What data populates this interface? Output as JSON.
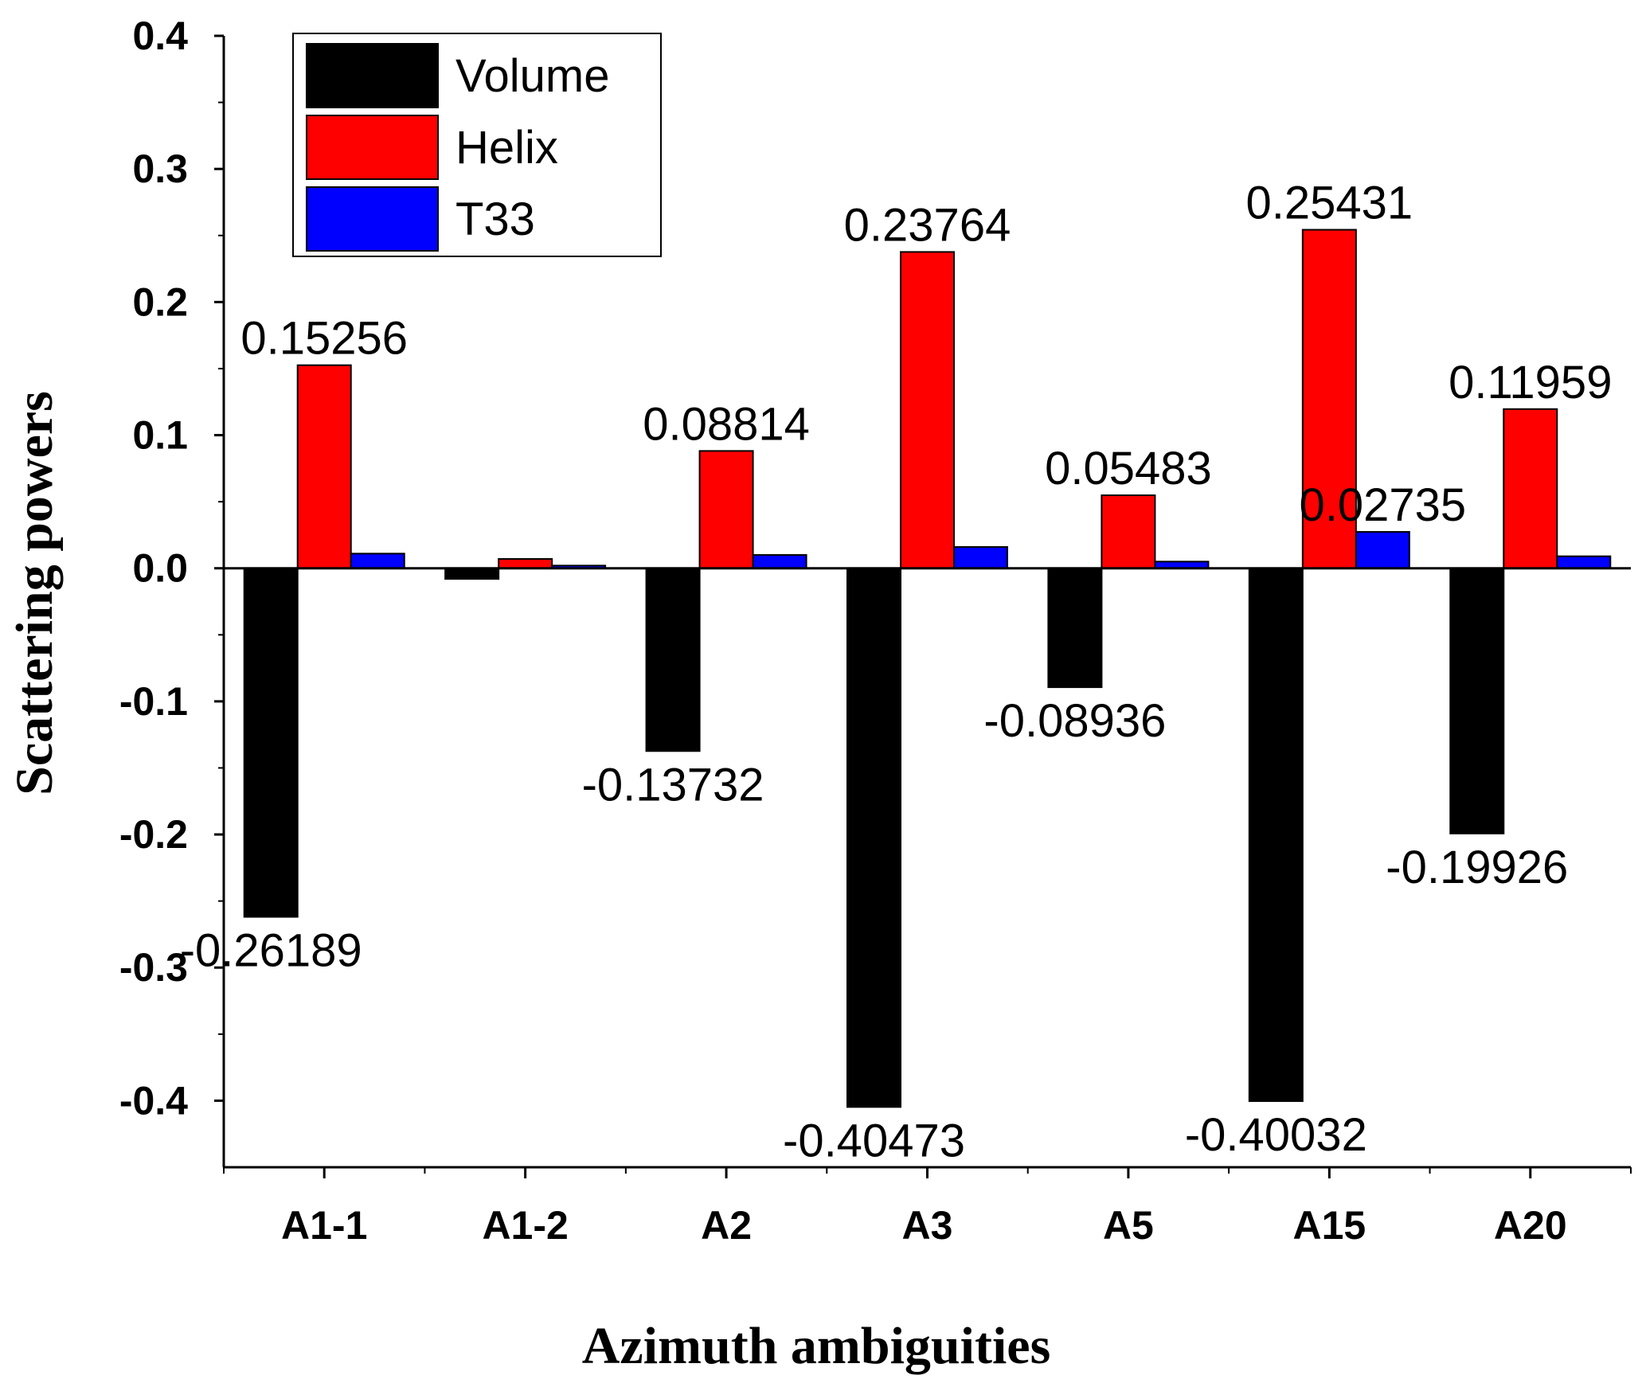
{
  "chart_data": {
    "type": "bar",
    "title": "",
    "xlabel": "Azimuth ambiguities",
    "ylabel": "Scattering powers",
    "ylim": [
      -0.45,
      0.4
    ],
    "yticks": [
      -0.4,
      -0.3,
      -0.2,
      -0.1,
      0.0,
      0.1,
      0.2,
      0.3,
      0.4
    ],
    "ytick_labels": [
      "-0.4",
      "-0.3",
      "-0.2",
      "-0.1",
      "0.0",
      "0.1",
      "0.2",
      "0.3",
      "0.4"
    ],
    "categories": [
      "A1-1",
      "A1-2",
      "A2",
      "A3",
      "A5",
      "A15",
      "A20"
    ],
    "legend_position": "top-left",
    "series": [
      {
        "name": "Volume",
        "color": "#000000",
        "values": [
          -0.26189,
          -0.008,
          -0.13732,
          -0.40473,
          -0.08936,
          -0.40032,
          -0.19926
        ],
        "labels": [
          "-0.26189",
          "",
          "-0.13732",
          "-0.40473",
          "-0.08936",
          "-0.40032",
          "-0.19926"
        ]
      },
      {
        "name": "Helix",
        "color": "#ff0000",
        "values": [
          0.15256,
          0.007,
          0.08814,
          0.23764,
          0.05483,
          0.25431,
          0.11959
        ],
        "labels": [
          "0.15256",
          "",
          "0.08814",
          "0.23764",
          "0.05483",
          "0.25431",
          "0.11959"
        ]
      },
      {
        "name": "T33",
        "color": "#0000ff",
        "values": [
          0.011,
          0.002,
          0.01,
          0.016,
          0.005,
          0.02735,
          0.009
        ],
        "labels": [
          "",
          "",
          "",
          "",
          "",
          "0.02735",
          ""
        ]
      }
    ]
  }
}
